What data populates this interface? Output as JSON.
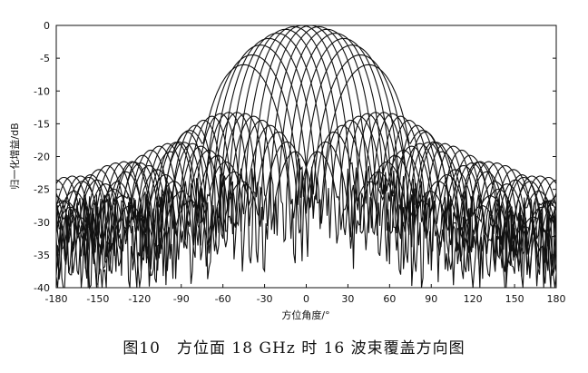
{
  "chart_data": {
    "type": "line",
    "xlabel": "方位角度/°",
    "ylabel": "归一化增益/dB",
    "xlim": [
      -180,
      180
    ],
    "ylim": [
      -40,
      0
    ],
    "xticks": [
      "-180",
      "-150",
      "-120",
      "-90",
      "-60",
      "-30",
      "0",
      "30",
      "60",
      "90",
      "120",
      "150",
      "180"
    ],
    "yticks": [
      "0",
      "-5",
      "-10",
      "-15",
      "-20",
      "-25",
      "-30",
      "-35",
      "-40"
    ],
    "grid": false,
    "legend": "none",
    "beam_count": 16,
    "beam_peak_angles": [
      -45,
      -39,
      -33,
      -27,
      -21,
      -15,
      -9,
      -3,
      3,
      9,
      15,
      21,
      27,
      33,
      39,
      45
    ],
    "beam_peak_gains": [
      -6,
      -4.5,
      -3,
      -2,
      -1.2,
      -0.6,
      -0.2,
      0,
      0,
      -0.2,
      -0.6,
      -1.2,
      -2,
      -3,
      -4.5,
      -6
    ],
    "outer_sidelobe": {
      "angles": [
        -84,
        84
      ],
      "peak_gain": -16,
      "secondary_angles": [
        -67,
        67
      ],
      "secondary_gain": -21
    },
    "far_sidelobe_level_range": [
      -40,
      -30
    ],
    "series_color": "#111111"
  },
  "caption": "图10　方位面 18 GHz 时 16 波束覆盖方向图"
}
